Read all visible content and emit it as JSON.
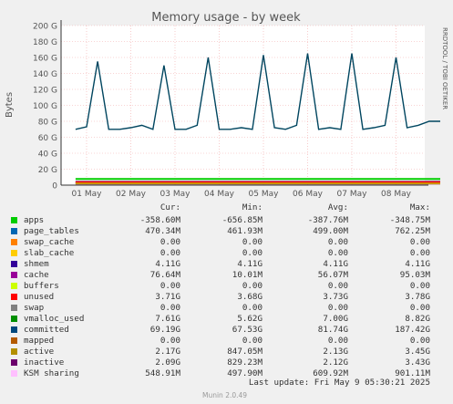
{
  "chart_data": {
    "type": "line",
    "title": "Memory usage - by week",
    "ylabel": "Bytes",
    "side_label": "RRDTOOL / TOBI OETIKER",
    "y_unit": "G",
    "ylim": [
      0,
      200
    ],
    "y_ticks": [
      "0",
      "20 G",
      "40 G",
      "60 G",
      "80 G",
      "100 G",
      "120 G",
      "140 G",
      "160 G",
      "180 G",
      "200 G"
    ],
    "x_ticks": [
      "01 May",
      "02 May",
      "03 May",
      "04 May",
      "05 May",
      "06 May",
      "07 May",
      "08 May"
    ],
    "x": [
      "2025-04-30T18:00",
      "2025-05-01",
      "2025-05-01T06:00",
      "2025-05-01T12:00",
      "2025-05-01T18:00",
      "2025-05-02",
      "2025-05-02T06:00",
      "2025-05-02T12:00",
      "2025-05-02T18:00",
      "2025-05-03",
      "2025-05-03T06:00",
      "2025-05-03T12:00",
      "2025-05-03T18:00",
      "2025-05-04",
      "2025-05-04T06:00",
      "2025-05-04T12:00",
      "2025-05-04T18:00",
      "2025-05-05",
      "2025-05-05T06:00",
      "2025-05-05T12:00",
      "2025-05-05T18:00",
      "2025-05-06",
      "2025-05-06T06:00",
      "2025-05-06T12:00",
      "2025-05-06T18:00",
      "2025-05-07",
      "2025-05-07T06:00",
      "2025-05-07T12:00",
      "2025-05-07T18:00",
      "2025-05-08",
      "2025-05-08T06:00",
      "2025-05-08T12:00",
      "2025-05-08T18:00",
      "2025-05-09"
    ],
    "series": [
      {
        "name": "committed",
        "color": "#00455f",
        "values": [
          70,
          73,
          155,
          70,
          70,
          72,
          75,
          70,
          150,
          70,
          70,
          75,
          160,
          70,
          70,
          72,
          70,
          163,
          72,
          70,
          75,
          165,
          70,
          72,
          70,
          165,
          70,
          72,
          75,
          160,
          72,
          75,
          80,
          80
        ]
      },
      {
        "name": "vmalloc_used",
        "color": "#00cc00",
        "values": [
          7.6,
          7.6,
          7.6,
          7.6,
          7.6,
          7.6,
          7.6,
          7.6,
          7.6,
          7.6,
          7.6,
          7.6,
          7.6,
          7.6,
          7.6,
          7.6,
          7.6,
          7.6,
          7.6,
          7.6,
          7.6,
          7.6,
          7.6,
          7.6,
          7.6,
          7.6,
          7.6,
          7.6,
          7.6,
          7.6,
          7.6,
          7.6,
          7.6,
          7.6
        ]
      },
      {
        "name": "shmem",
        "color": "#330099",
        "values": [
          4.1,
          4.1,
          4.1,
          4.1,
          4.1,
          4.1,
          4.1,
          4.1,
          4.1,
          4.1,
          4.1,
          4.1,
          4.1,
          4.1,
          4.1,
          4.1,
          4.1,
          4.1,
          4.1,
          4.1,
          4.1,
          4.1,
          4.1,
          4.1,
          4.1,
          4.1,
          4.1,
          4.1,
          4.1,
          4.1,
          4.1,
          4.1,
          4.1,
          4.1
        ]
      },
      {
        "name": "unused",
        "color": "#ff0000",
        "values": [
          3.7,
          3.7,
          3.7,
          3.7,
          3.7,
          3.7,
          3.7,
          3.7,
          3.7,
          3.7,
          3.7,
          3.7,
          3.7,
          3.7,
          3.7,
          3.7,
          3.7,
          3.7,
          3.7,
          3.7,
          3.7,
          3.7,
          3.7,
          3.7,
          3.7,
          3.7,
          3.7,
          3.7,
          3.7,
          3.7,
          3.7,
          3.7,
          3.7,
          3.7
        ]
      },
      {
        "name": "inactive",
        "color": "#770077",
        "values": [
          2.1,
          2.1,
          2.1,
          2.1,
          2.1,
          2.1,
          2.1,
          2.1,
          2.1,
          2.1,
          2.1,
          2.1,
          2.1,
          2.1,
          2.1,
          2.1,
          2.1,
          2.1,
          2.1,
          2.1,
          2.1,
          2.1,
          2.1,
          2.1,
          2.1,
          2.1,
          2.1,
          2.1,
          2.1,
          2.1,
          2.1,
          2.1,
          2.1,
          2.1
        ]
      },
      {
        "name": "active",
        "color": "#cc9900",
        "values": [
          2.2,
          2.2,
          2.2,
          2.2,
          2.2,
          2.2,
          2.2,
          2.2,
          2.2,
          2.2,
          2.2,
          2.2,
          2.2,
          2.2,
          2.2,
          2.2,
          2.2,
          2.2,
          2.2,
          2.2,
          2.2,
          2.2,
          2.2,
          2.2,
          2.2,
          2.2,
          2.2,
          2.2,
          2.2,
          2.2,
          2.2,
          2.2,
          2.2,
          2.2
        ]
      }
    ]
  },
  "legend": {
    "headers": {
      "cur": "Cur:",
      "min": "Min:",
      "avg": "Avg:",
      "max": "Max:"
    },
    "rows": [
      {
        "name": "apps",
        "color": "#00cc00",
        "cur": "-358.60M",
        "min": "-656.85M",
        "avg": "-387.76M",
        "max": "-348.75M"
      },
      {
        "name": "page_tables",
        "color": "#0066b3",
        "cur": "470.34M",
        "min": "461.93M",
        "avg": "499.00M",
        "max": "762.25M"
      },
      {
        "name": "swap_cache",
        "color": "#ff8000",
        "cur": "0.00",
        "min": "0.00",
        "avg": "0.00",
        "max": "0.00"
      },
      {
        "name": "slab_cache",
        "color": "#ffcc00",
        "cur": "0.00",
        "min": "0.00",
        "avg": "0.00",
        "max": "0.00"
      },
      {
        "name": "shmem",
        "color": "#330099",
        "cur": "4.11G",
        "min": "4.11G",
        "avg": "4.11G",
        "max": "4.11G"
      },
      {
        "name": "cache",
        "color": "#990099",
        "cur": "76.64M",
        "min": "10.01M",
        "avg": "56.07M",
        "max": "95.03M"
      },
      {
        "name": "buffers",
        "color": "#ccff00",
        "cur": "0.00",
        "min": "0.00",
        "avg": "0.00",
        "max": "0.00"
      },
      {
        "name": "unused",
        "color": "#ff0000",
        "cur": "3.71G",
        "min": "3.68G",
        "avg": "3.73G",
        "max": "3.78G"
      },
      {
        "name": "swap",
        "color": "#808080",
        "cur": "0.00",
        "min": "0.00",
        "avg": "0.00",
        "max": "0.00"
      },
      {
        "name": "vmalloc_used",
        "color": "#008f00",
        "cur": "7.61G",
        "min": "5.62G",
        "avg": "7.00G",
        "max": "8.82G"
      },
      {
        "name": "committed",
        "color": "#00487d",
        "cur": "69.19G",
        "min": "67.53G",
        "avg": "81.74G",
        "max": "187.42G"
      },
      {
        "name": "mapped",
        "color": "#b35a00",
        "cur": "0.00",
        "min": "0.00",
        "avg": "0.00",
        "max": "0.00"
      },
      {
        "name": "active",
        "color": "#b38f00",
        "cur": "2.17G",
        "min": "847.05M",
        "avg": "2.13G",
        "max": "3.45G"
      },
      {
        "name": "inactive",
        "color": "#6b006b",
        "cur": "2.09G",
        "min": "829.23M",
        "avg": "2.12G",
        "max": "3.43G"
      },
      {
        "name": "KSM sharing",
        "color": "#ffbfff",
        "cur": "548.91M",
        "min": "497.90M",
        "avg": "609.92M",
        "max": "901.11M"
      }
    ]
  },
  "last_update": "Last update: Fri May  9 05:30:21 2025",
  "footer": "Munin 2.0.49"
}
